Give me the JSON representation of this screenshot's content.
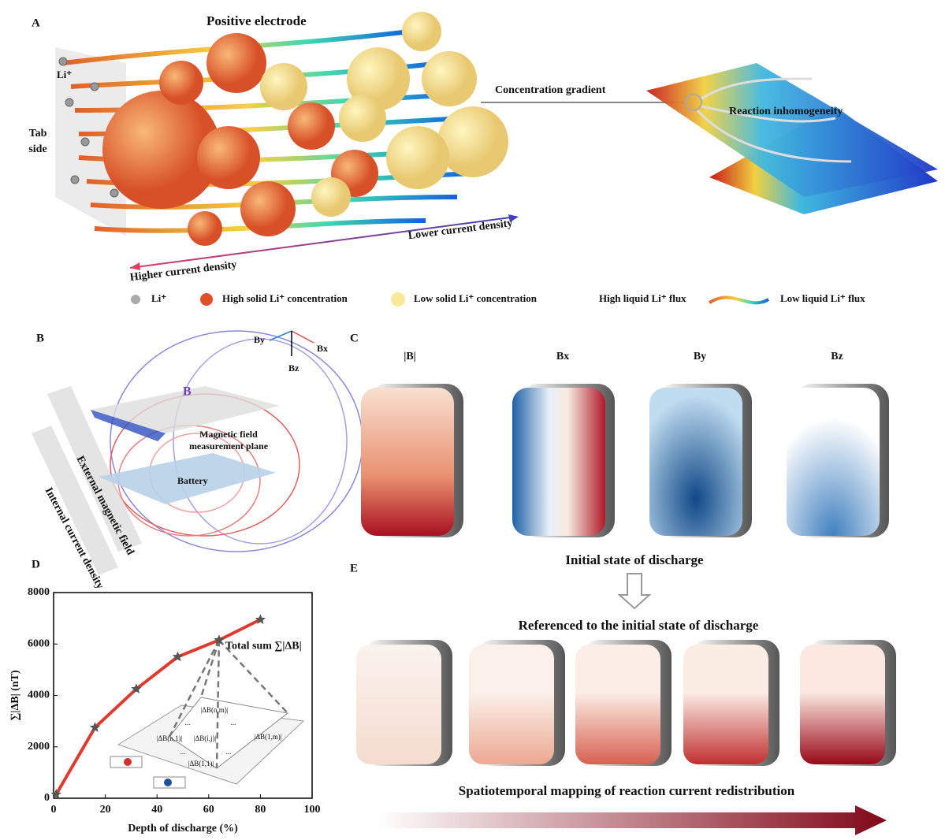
{
  "panels": {
    "a": "A",
    "b": "B",
    "c": "C",
    "d": "D",
    "e": "E"
  },
  "panel_a": {
    "positive_electrode": "Positive electrode",
    "li_ion": "Li⁺",
    "tab_side": [
      "Tab",
      "side"
    ],
    "concentration_gradient": "Concentration gradient",
    "reaction_inhomogeneity": "Reaction inhomogeneity",
    "lower_current_density": "Lower current density",
    "higher_current_density": "Higher current density",
    "legend": [
      "Li⁺",
      "High solid Li⁺ concentration",
      "Low solid Li⁺ concentration",
      "High liquid Li⁺ flux",
      "Low liquid Li⁺ flux"
    ]
  },
  "panel_b": {
    "axes": [
      "By",
      "Bx",
      "Bz"
    ],
    "b_vector": "B⃗",
    "external_field": "External magnetic field",
    "internal_current": "Internal current density",
    "measurement_plane": [
      "Magnetic field",
      "measurement plane"
    ],
    "battery": "Battery"
  },
  "panel_c": {
    "maps": [
      "|B|",
      "Bx",
      "By",
      "Bz"
    ]
  },
  "panel_e": {
    "initial_state": "Initial state of discharge",
    "referenced": "Referenced to the initial state of discharge",
    "mapping": "Spatiotemporal mapping of reaction current redistribution"
  },
  "chart_data": {
    "type": "line",
    "x_label": "Depth of discharge (%)",
    "y_label": "∑|ΔB| (nT)",
    "annotation": "Total sum ∑|ΔB|",
    "inset_labels": [
      "|ΔB(n,m)|",
      "...",
      "...",
      "|ΔB(n,1)|",
      "|ΔB(i,j)|",
      "|ΔB(1,m)|",
      "...",
      "...",
      "|ΔB(1,1)|"
    ],
    "x": [
      1,
      16,
      32,
      48,
      64,
      80
    ],
    "series": [
      {
        "name": "Total sum",
        "color": "#e03a2f",
        "values": [
          150,
          2750,
          4250,
          5500,
          6150,
          6950
        ]
      }
    ],
    "marker_color": "#555555",
    "xlim": [
      0,
      100
    ],
    "xticks": [
      0,
      20,
      40,
      60,
      80,
      100
    ],
    "ylim": [
      0,
      8000
    ],
    "yticks": [
      0,
      2000,
      4000,
      6000,
      8000
    ]
  }
}
